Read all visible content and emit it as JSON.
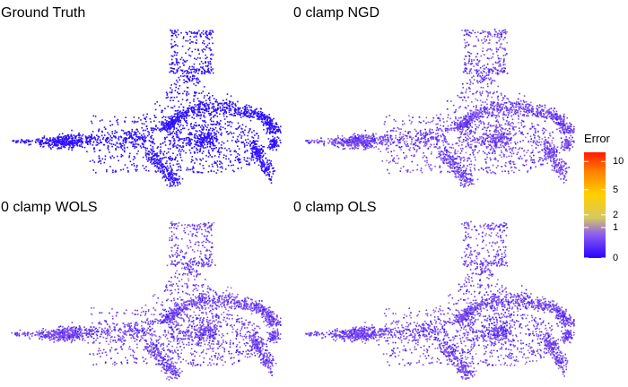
{
  "chart_data": [
    {
      "type": "scatter",
      "title": "Ground Truth",
      "error_level": 0.0
    },
    {
      "type": "scatter",
      "title": "0 clamp NGD",
      "error_level": 0.7
    },
    {
      "type": "scatter",
      "title": "0 clamp WOLS",
      "error_level": 0.8
    },
    {
      "type": "scatter",
      "title": "0 clamp OLS",
      "error_level": 0.75
    }
  ],
  "legend": {
    "title": "Error",
    "ticks": [
      "0",
      "1",
      "2",
      "5",
      "10"
    ],
    "tick_values": [
      0,
      1,
      2,
      5,
      10
    ],
    "color_stops": [
      "#2a00ff",
      "#8a5cf0",
      "#d6c860",
      "#ffd000",
      "#ff8000",
      "#ff1a00"
    ]
  }
}
